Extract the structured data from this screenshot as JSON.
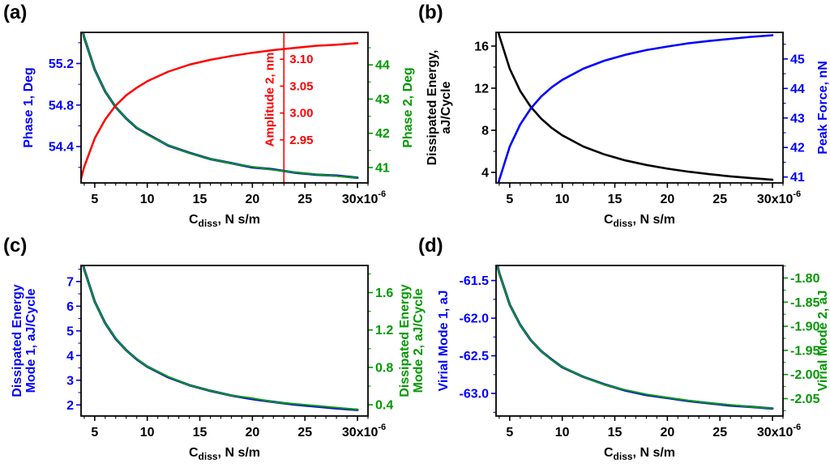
{
  "figure_background": "#ffffff",
  "chart_data": [
    {
      "id": "a",
      "panel_label": "(a)",
      "type": "line",
      "xlabel": {
        "pre": "C",
        "sub": "diss",
        "post": ", N s/m"
      },
      "xlim": [
        3.7,
        31
      ],
      "x_major_ticks": [
        5,
        10,
        15,
        20,
        25,
        30
      ],
      "x_tick_labels": [
        "5",
        "10",
        "15",
        "20",
        "25"
      ],
      "x_last_label": {
        "mant": "30x10",
        "exp": "-6"
      },
      "x_minor_step": 1,
      "x": [
        3.7,
        4,
        5,
        6,
        7,
        8,
        9,
        10,
        12,
        14,
        16,
        18,
        20,
        22,
        24,
        26,
        28,
        30
      ],
      "axes": [
        {
          "side": "left",
          "label_lines": [
            "Phase 1, Deg"
          ],
          "color": "#0000FF",
          "range": [
            54.05,
            55.5
          ],
          "ticks": [
            54.4,
            54.8,
            55.2
          ],
          "tick_labels": [
            "54.4",
            "54.8",
            "55.2"
          ],
          "minor_step": 0.2
        },
        {
          "side": "right",
          "label_lines": [
            "Phase 2, Deg"
          ],
          "color": "#009900",
          "range": [
            40.55,
            44.95
          ],
          "ticks": [
            41,
            42,
            43,
            44
          ],
          "tick_labels": [
            "41",
            "42",
            "43",
            "44"
          ],
          "minor_step": 0.5
        },
        {
          "side": "inner",
          "label_lines": [
            "Amplitude 2, nm"
          ],
          "color": "#FF0000",
          "range": [
            2.87,
            3.15
          ],
          "ticks": [
            2.95,
            3.0,
            3.05,
            3.1
          ],
          "tick_labels": [
            "2.95",
            "3.00",
            "3.05",
            "3.10"
          ],
          "minor_step": 0,
          "x_position": 23
        }
      ],
      "series": [
        {
          "name": "phase-1",
          "axis": 0,
          "color": "#0000FF",
          "width": 3,
          "y": [
            55.58,
            55.45,
            55.14,
            54.93,
            54.78,
            54.67,
            54.58,
            54.52,
            54.41,
            54.34,
            54.28,
            54.24,
            54.2,
            54.18,
            54.15,
            54.13,
            54.12,
            54.1
          ]
        },
        {
          "name": "phase-2",
          "axis": 1,
          "color": "#009900",
          "width": 2,
          "y": [
            45.18,
            44.8,
            43.85,
            43.22,
            42.77,
            42.43,
            42.17,
            41.96,
            41.65,
            41.42,
            41.25,
            41.12,
            41.02,
            40.93,
            40.86,
            40.8,
            40.75,
            40.7
          ]
        },
        {
          "name": "amplitude-2",
          "axis": 2,
          "color": "#FF0000",
          "width": 2.5,
          "y": [
            2.878,
            2.9,
            2.953,
            2.988,
            3.014,
            3.033,
            3.047,
            3.059,
            3.077,
            3.09,
            3.099,
            3.106,
            3.112,
            3.117,
            3.121,
            3.125,
            3.127,
            3.13
          ]
        }
      ]
    },
    {
      "id": "b",
      "panel_label": "(b)",
      "type": "line",
      "xlabel": {
        "pre": "C",
        "sub": "diss",
        "post": ", N s/m"
      },
      "xlim": [
        3.7,
        31
      ],
      "x_major_ticks": [
        5,
        10,
        15,
        20,
        25,
        30
      ],
      "x_tick_labels": [
        "5",
        "10",
        "15",
        "20",
        "25"
      ],
      "x_last_label": {
        "mant": "30x10",
        "exp": "-6"
      },
      "x_minor_step": 1,
      "x": [
        3.7,
        4,
        5,
        6,
        7,
        8,
        9,
        10,
        12,
        14,
        16,
        18,
        20,
        22,
        24,
        26,
        28,
        30
      ],
      "axes": [
        {
          "side": "left",
          "label_lines": [
            "Dissipated Energy,",
            "aJ/Cycle"
          ],
          "color": "#000000",
          "range": [
            3.0,
            17.3
          ],
          "ticks": [
            4,
            8,
            12,
            16
          ],
          "tick_labels": [
            "4",
            "8",
            "12",
            "16"
          ],
          "minor_step": 2
        },
        {
          "side": "right",
          "label_lines": [
            "Peak Force, nN"
          ],
          "color": "#0000FF",
          "range": [
            40.8,
            45.9
          ],
          "ticks": [
            41,
            42,
            43,
            44,
            45
          ],
          "tick_labels": [
            "41",
            "42",
            "43",
            "44",
            "45"
          ],
          "minor_step": 0.5
        }
      ],
      "series": [
        {
          "name": "dissipated-energy",
          "axis": 0,
          "color": "#000000",
          "width": 2.6,
          "y": [
            18.28,
            17.0,
            13.84,
            11.73,
            10.23,
            9.1,
            8.22,
            7.52,
            6.46,
            5.71,
            5.14,
            4.71,
            4.35,
            4.07,
            3.83,
            3.62,
            3.45,
            3.3
          ]
        },
        {
          "name": "peak-force",
          "axis": 1,
          "color": "#0000FF",
          "width": 2.6,
          "y": [
            40.44,
            40.9,
            42.03,
            42.78,
            43.32,
            43.73,
            44.04,
            44.29,
            44.67,
            44.94,
            45.14,
            45.3,
            45.42,
            45.53,
            45.61,
            45.68,
            45.75,
            45.8
          ]
        }
      ]
    },
    {
      "id": "c",
      "panel_label": "(c)",
      "type": "line",
      "xlabel": {
        "pre": "C",
        "sub": "diss",
        "post": ", N s/m"
      },
      "xlim": [
        3.7,
        31
      ],
      "x_major_ticks": [
        5,
        10,
        15,
        20,
        25,
        30
      ],
      "x_tick_labels": [
        "5",
        "10",
        "15",
        "20",
        "25"
      ],
      "x_last_label": {
        "mant": "30x10",
        "exp": "-6"
      },
      "x_minor_step": 1,
      "x": [
        3.7,
        4,
        5,
        6,
        7,
        8,
        9,
        10,
        12,
        14,
        16,
        18,
        20,
        22,
        24,
        26,
        28,
        30
      ],
      "axes": [
        {
          "side": "left",
          "label_lines": [
            "Dissipated Energy",
            "Mode 1, aJ/Cycle"
          ],
          "color": "#0000FF",
          "range": [
            1.55,
            7.65
          ],
          "ticks": [
            2,
            3,
            4,
            5,
            6,
            7
          ],
          "tick_labels": [
            "2",
            "3",
            "4",
            "5",
            "6",
            "7"
          ],
          "minor_step": 0.5
        },
        {
          "side": "right",
          "label_lines": [
            "Dissipated Energy",
            "Mode 2, aJ/Cycle"
          ],
          "color": "#009900",
          "range": [
            0.28,
            1.89
          ],
          "ticks": [
            0.4,
            0.8,
            1.2,
            1.6
          ],
          "tick_labels": [
            "0.4",
            "0.8",
            "1.2",
            "1.6"
          ],
          "minor_step": 0.2
        }
      ],
      "series": [
        {
          "name": "dissipated-energy-mode-1",
          "axis": 0,
          "color": "#0000FF",
          "width": 3,
          "y": [
            8.03,
            7.5,
            6.18,
            5.31,
            4.68,
            4.21,
            3.85,
            3.55,
            3.12,
            2.8,
            2.57,
            2.38,
            2.24,
            2.12,
            2.02,
            1.94,
            1.86,
            1.8
          ]
        },
        {
          "name": "dissipated-energy-mode-2",
          "axis": 1,
          "color": "#009900",
          "width": 2,
          "y": [
            1.99,
            1.85,
            1.5,
            1.27,
            1.11,
            0.98,
            0.89,
            0.81,
            0.7,
            0.61,
            0.55,
            0.5,
            0.47,
            0.43,
            0.41,
            0.39,
            0.37,
            0.35
          ]
        }
      ]
    },
    {
      "id": "d",
      "panel_label": "(d)",
      "type": "line",
      "xlabel": {
        "pre": "C",
        "sub": "diss",
        "post": ", N s/m"
      },
      "xlim": [
        3.7,
        31
      ],
      "x_major_ticks": [
        5,
        10,
        15,
        20,
        25,
        30
      ],
      "x_tick_labels": [
        "5",
        "10",
        "15",
        "20",
        "25"
      ],
      "x_last_label": {
        "mant": "30x10",
        "exp": "-6"
      },
      "x_minor_step": 1,
      "x": [
        3.7,
        4,
        5,
        6,
        7,
        8,
        9,
        10,
        12,
        14,
        16,
        18,
        20,
        22,
        24,
        26,
        28,
        30
      ],
      "axes": [
        {
          "side": "left",
          "label_lines": [
            "Virial Mode 1, aJ"
          ],
          "color": "#0000FF",
          "range": [
            -63.3,
            -61.3
          ],
          "ticks": [
            -63.0,
            -62.5,
            -62.0,
            -61.5
          ],
          "tick_labels": [
            "-63.0",
            "-62.5",
            "-62.0",
            "-61.5"
          ],
          "minor_step": 0.25
        },
        {
          "side": "right",
          "label_lines": [
            "Virial Mode 2, aJ"
          ],
          "color": "#009900",
          "range": [
            -2.086,
            -1.774
          ],
          "ticks": [
            -2.05,
            -2.0,
            -1.95,
            -1.9,
            -1.85,
            -1.8
          ],
          "tick_labels": [
            "-2.05",
            "-2.00",
            "-1.95",
            "-1.90",
            "-1.85",
            "-1.80"
          ],
          "minor_step": 0.025
        }
      ],
      "series": [
        {
          "name": "virial-mode-1",
          "axis": 0,
          "color": "#0000FF",
          "width": 3,
          "y": [
            -61.23,
            -61.4,
            -61.82,
            -62.09,
            -62.29,
            -62.44,
            -62.55,
            -62.65,
            -62.78,
            -62.88,
            -62.96,
            -63.02,
            -63.06,
            -63.1,
            -63.13,
            -63.16,
            -63.18,
            -63.2
          ]
        },
        {
          "name": "virial-mode-2",
          "axis": 1,
          "color": "#009900",
          "width": 2,
          "y": [
            -1.764,
            -1.79,
            -1.855,
            -1.898,
            -1.928,
            -1.952,
            -1.97,
            -1.984,
            -2.005,
            -2.021,
            -2.032,
            -2.041,
            -2.048,
            -2.054,
            -2.059,
            -2.063,
            -2.067,
            -2.07
          ]
        }
      ]
    }
  ]
}
